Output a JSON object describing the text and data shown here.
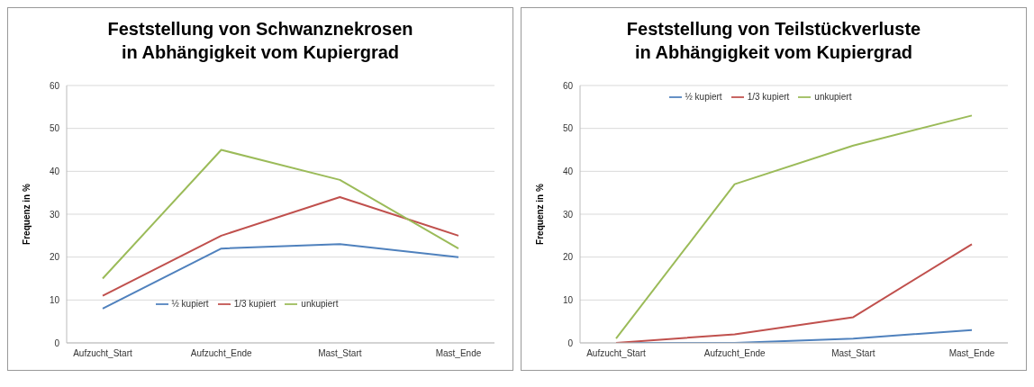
{
  "chart_data": [
    {
      "type": "line",
      "title": "Feststellung von Schwanznekrosen in Abhängigkeit vom Kupiergrad",
      "ylabel": "Frequenz in %",
      "categories": [
        "Aufzucht_Start",
        "Aufzucht_Ende",
        "Mast_Start",
        "Mast_Ende"
      ],
      "ylim": [
        0,
        60
      ],
      "yticks": [
        0,
        10,
        20,
        30,
        40,
        50,
        60
      ],
      "grid": "y",
      "legend": "bottom",
      "marker": "none",
      "series": [
        {
          "name": "½ kupiert",
          "color": "#4f81bd",
          "values": [
            8,
            22,
            23,
            20
          ]
        },
        {
          "name": "1/3 kupiert",
          "color": "#c0504d",
          "values": [
            11,
            25,
            34,
            25
          ]
        },
        {
          "name": "unkupiert",
          "color": "#9bbb59",
          "values": [
            15,
            45,
            38,
            22
          ]
        }
      ]
    },
    {
      "type": "line",
      "title": "Feststellung von Teilstückverluste in Abhängigkeit vom Kupiergrad",
      "ylabel": "Frequenz in %",
      "categories": [
        "Aufzucht_Start",
        "Aufzucht_Ende",
        "Mast_Start",
        "Mast_Ende"
      ],
      "ylim": [
        0,
        60
      ],
      "yticks": [
        0,
        10,
        20,
        30,
        40,
        50,
        60
      ],
      "grid": "y",
      "legend": "top",
      "marker": "none",
      "series": [
        {
          "name": "½ kupiert",
          "color": "#4f81bd",
          "values": [
            0,
            0,
            1,
            3
          ]
        },
        {
          "name": "1/3 kupiert",
          "color": "#c0504d",
          "values": [
            0,
            2,
            6,
            23
          ]
        },
        {
          "name": "unkupiert",
          "color": "#9bbb59",
          "values": [
            1,
            37,
            46,
            53
          ]
        }
      ]
    }
  ]
}
